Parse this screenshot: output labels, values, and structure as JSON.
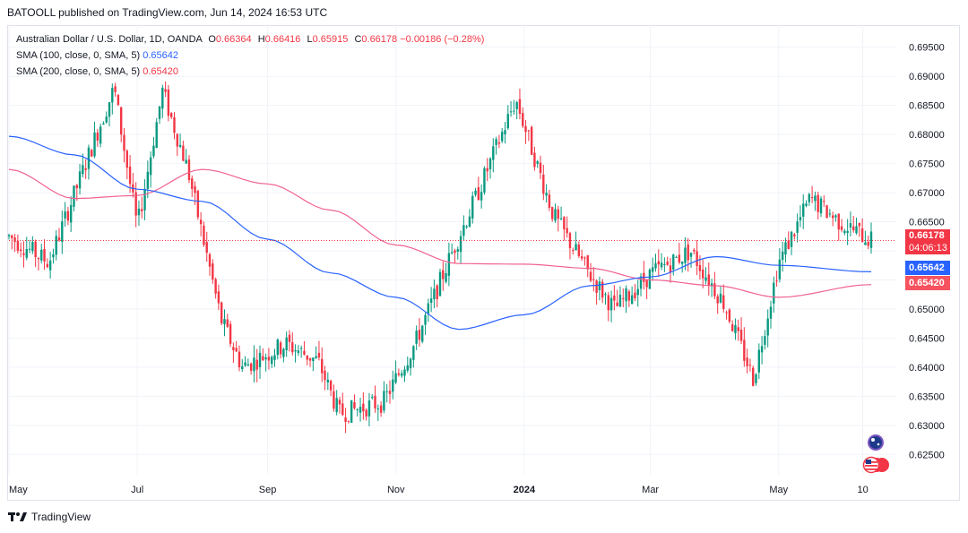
{
  "publisher_line": "BATOOLL published on TradingView.com, Jun 14, 2024 16:53 UTC",
  "legend": {
    "symbol": "Australian Dollar / U.S. Dollar, 1D, OANDA",
    "open_label": "O",
    "open": "0.66364",
    "high_label": "H",
    "high": "0.66416",
    "low_label": "L",
    "low": "0.65915",
    "close_label": "C",
    "close": "0.66178",
    "change": "−0.00186 (−0.28%)",
    "sma100_label": "SMA (100, close, 0, SMA, 5)",
    "sma100_value": "0.65642",
    "sma200_label": "SMA (200, close, 0, SMA, 5)",
    "sma200_value": "0.65420"
  },
  "price_tags": {
    "last": "0.66178",
    "countdown": "04:06:13",
    "sma100": "0.65642",
    "sma200": "0.65420"
  },
  "footer_brand": "TradingView",
  "colors": {
    "up": "#089981",
    "down": "#f23645",
    "sma100": "#2962ff",
    "sma200": "#f06292",
    "grid": "#f0f3fa"
  },
  "chart_data": {
    "type": "line",
    "yticks": [
      "0.69500",
      "0.69000",
      "0.68500",
      "0.68000",
      "0.67500",
      "0.67000",
      "0.66500",
      "0.66000",
      "0.65500",
      "0.65000",
      "0.64500",
      "0.64000",
      "0.63500",
      "0.63000",
      "0.62500"
    ],
    "xticks": [
      "May",
      "Jul",
      "Sep",
      "Nov",
      "2024",
      "Mar",
      "May",
      "10"
    ],
    "ylim": [
      0.6215,
      0.6985
    ],
    "series": [
      {
        "name": "Australian Dollar / U.S. Dollar",
        "x": [
          "2023-05-01",
          "2023-05-20",
          "2023-06-10",
          "2023-06-20",
          "2023-07-01",
          "2023-07-13",
          "2023-07-25",
          "2023-08-10",
          "2023-08-20",
          "2023-09-10",
          "2023-09-25",
          "2023-10-05",
          "2023-10-26",
          "2023-11-10",
          "2023-11-28",
          "2023-12-10",
          "2023-12-28",
          "2024-01-15",
          "2024-02-01",
          "2024-02-13",
          "2024-03-01",
          "2024-03-20",
          "2024-04-05",
          "2024-04-19",
          "2024-05-01",
          "2024-05-16",
          "2024-05-30",
          "2024-06-14"
        ],
        "values": [
          0.6625,
          0.658,
          0.6785,
          0.688,
          0.664,
          0.6875,
          0.674,
          0.648,
          0.64,
          0.644,
          0.641,
          0.632,
          0.634,
          0.644,
          0.66,
          0.67,
          0.686,
          0.666,
          0.656,
          0.65,
          0.656,
          0.66,
          0.651,
          0.638,
          0.658,
          0.669,
          0.665,
          0.6618
        ]
      },
      {
        "name": "SMA (100, close, 0, SMA, 5)",
        "x": [
          "2023-05-01",
          "2023-06-01",
          "2023-07-01",
          "2023-08-01",
          "2023-09-01",
          "2023-10-01",
          "2023-11-01",
          "2023-12-01",
          "2024-01-01",
          "2024-02-01",
          "2024-03-01",
          "2024-04-01",
          "2024-05-01",
          "2024-06-14"
        ],
        "values": [
          0.6797,
          0.6765,
          0.6706,
          0.6685,
          0.662,
          0.6562,
          0.652,
          0.6465,
          0.649,
          0.654,
          0.6555,
          0.659,
          0.6575,
          0.6564
        ]
      },
      {
        "name": "SMA (200, close, 0, SMA, 5)",
        "x": [
          "2023-05-01",
          "2023-06-01",
          "2023-07-01",
          "2023-08-01",
          "2023-09-01",
          "2023-10-01",
          "2023-11-01",
          "2023-12-01",
          "2024-01-01",
          "2024-02-01",
          "2024-03-01",
          "2024-04-01",
          "2024-05-01",
          "2024-06-14"
        ],
        "values": [
          0.674,
          0.669,
          0.6695,
          0.674,
          0.6715,
          0.667,
          0.661,
          0.6578,
          0.6577,
          0.657,
          0.655,
          0.654,
          0.652,
          0.6542
        ]
      }
    ]
  }
}
